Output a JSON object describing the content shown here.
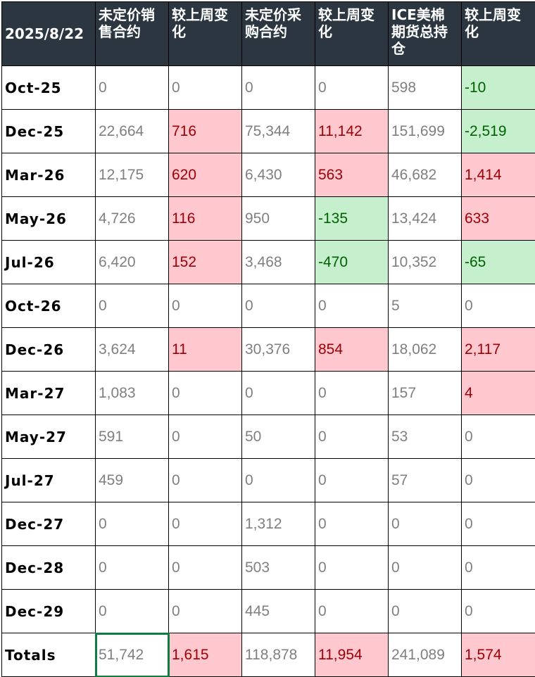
{
  "colors": {
    "header_bg": "#2b3640",
    "header_text": "#ffffff",
    "increase_bg": "#ffc7ce",
    "increase_text": "#9c0006",
    "decrease_bg": "#c6efce",
    "decrease_text": "#006100",
    "value_text": "#7f7f7f",
    "selection_border": "#107c41"
  },
  "table": {
    "headers": [
      "2025/8/22",
      "未定价销售合约",
      "较上周变化",
      "未定价采购合约",
      "较上周变化",
      "ICE美棉期货总持仓",
      "较上周变化"
    ],
    "rows": [
      {
        "month": "Oct-25",
        "cells": [
          {
            "value": "0",
            "tone": "plain"
          },
          {
            "value": "0",
            "tone": "plain"
          },
          {
            "value": "0",
            "tone": "plain"
          },
          {
            "value": "0",
            "tone": "plain"
          },
          {
            "value": "598",
            "tone": "plain"
          },
          {
            "value": "-10",
            "tone": "down"
          }
        ]
      },
      {
        "month": "Dec-25",
        "cells": [
          {
            "value": "22,664",
            "tone": "plain"
          },
          {
            "value": "716",
            "tone": "up"
          },
          {
            "value": "75,344",
            "tone": "plain"
          },
          {
            "value": "11,142",
            "tone": "up"
          },
          {
            "value": "151,699",
            "tone": "plain"
          },
          {
            "value": "-2,519",
            "tone": "down"
          }
        ]
      },
      {
        "month": "Mar-26",
        "cells": [
          {
            "value": "12,175",
            "tone": "plain"
          },
          {
            "value": "620",
            "tone": "up"
          },
          {
            "value": "6,430",
            "tone": "plain"
          },
          {
            "value": "563",
            "tone": "up"
          },
          {
            "value": "46,682",
            "tone": "plain"
          },
          {
            "value": "1,414",
            "tone": "up"
          }
        ]
      },
      {
        "month": "May-26",
        "cells": [
          {
            "value": "4,726",
            "tone": "plain"
          },
          {
            "value": "116",
            "tone": "up"
          },
          {
            "value": "950",
            "tone": "plain"
          },
          {
            "value": "-135",
            "tone": "down"
          },
          {
            "value": "13,424",
            "tone": "plain"
          },
          {
            "value": "633",
            "tone": "up"
          }
        ]
      },
      {
        "month": "Jul-26",
        "cells": [
          {
            "value": "6,420",
            "tone": "plain"
          },
          {
            "value": "152",
            "tone": "up"
          },
          {
            "value": "3,468",
            "tone": "plain"
          },
          {
            "value": "-470",
            "tone": "down"
          },
          {
            "value": "10,352",
            "tone": "plain"
          },
          {
            "value": "-65",
            "tone": "down"
          }
        ]
      },
      {
        "month": "Oct-26",
        "cells": [
          {
            "value": "0",
            "tone": "plain"
          },
          {
            "value": "0",
            "tone": "plain"
          },
          {
            "value": "0",
            "tone": "plain"
          },
          {
            "value": "0",
            "tone": "plain"
          },
          {
            "value": "5",
            "tone": "plain"
          },
          {
            "value": "0",
            "tone": "plain"
          }
        ]
      },
      {
        "month": "Dec-26",
        "cells": [
          {
            "value": "3,624",
            "tone": "plain"
          },
          {
            "value": "11",
            "tone": "up"
          },
          {
            "value": "30,376",
            "tone": "plain"
          },
          {
            "value": "854",
            "tone": "up"
          },
          {
            "value": "18,062",
            "tone": "plain"
          },
          {
            "value": "2,117",
            "tone": "up"
          }
        ]
      },
      {
        "month": "Mar-27",
        "cells": [
          {
            "value": "1,083",
            "tone": "plain"
          },
          {
            "value": "0",
            "tone": "plain"
          },
          {
            "value": "0",
            "tone": "plain"
          },
          {
            "value": "0",
            "tone": "plain"
          },
          {
            "value": "157",
            "tone": "plain"
          },
          {
            "value": "4",
            "tone": "up"
          }
        ]
      },
      {
        "month": "May-27",
        "cells": [
          {
            "value": "591",
            "tone": "plain"
          },
          {
            "value": "0",
            "tone": "plain"
          },
          {
            "value": "50",
            "tone": "plain"
          },
          {
            "value": "0",
            "tone": "plain"
          },
          {
            "value": "53",
            "tone": "plain"
          },
          {
            "value": "0",
            "tone": "plain"
          }
        ]
      },
      {
        "month": "Jul-27",
        "cells": [
          {
            "value": "459",
            "tone": "plain"
          },
          {
            "value": "0",
            "tone": "plain"
          },
          {
            "value": "0",
            "tone": "plain"
          },
          {
            "value": "0",
            "tone": "plain"
          },
          {
            "value": "57",
            "tone": "plain"
          },
          {
            "value": "0",
            "tone": "plain"
          }
        ]
      },
      {
        "month": "Dec-27",
        "cells": [
          {
            "value": "0",
            "tone": "plain"
          },
          {
            "value": "0",
            "tone": "plain"
          },
          {
            "value": "1,312",
            "tone": "plain"
          },
          {
            "value": "0",
            "tone": "plain"
          },
          {
            "value": "0",
            "tone": "plain"
          },
          {
            "value": "0",
            "tone": "plain"
          }
        ]
      },
      {
        "month": "Dec-28",
        "cells": [
          {
            "value": "0",
            "tone": "plain"
          },
          {
            "value": "0",
            "tone": "plain"
          },
          {
            "value": "503",
            "tone": "plain"
          },
          {
            "value": "0",
            "tone": "plain"
          },
          {
            "value": "0",
            "tone": "plain"
          },
          {
            "value": "0",
            "tone": "plain"
          }
        ]
      },
      {
        "month": "Dec-29",
        "cells": [
          {
            "value": "0",
            "tone": "plain"
          },
          {
            "value": "0",
            "tone": "plain"
          },
          {
            "value": "445",
            "tone": "plain"
          },
          {
            "value": "0",
            "tone": "plain"
          },
          {
            "value": "0",
            "tone": "plain"
          },
          {
            "value": "0",
            "tone": "plain"
          }
        ]
      },
      {
        "month": "Totals",
        "cells": [
          {
            "value": "51,742",
            "tone": "plain",
            "selected": true
          },
          {
            "value": "1,615",
            "tone": "up"
          },
          {
            "value": "118,878",
            "tone": "plain"
          },
          {
            "value": "11,954",
            "tone": "up"
          },
          {
            "value": "241,089",
            "tone": "plain"
          },
          {
            "value": "1,574",
            "tone": "up"
          }
        ]
      }
    ]
  }
}
